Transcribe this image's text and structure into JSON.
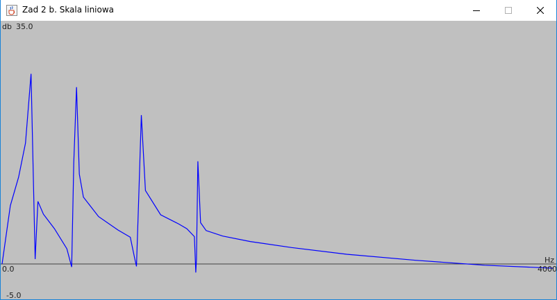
{
  "window": {
    "title": "Zad 2 b. Skala liniowa",
    "icon": "java-cup-icon",
    "controls": [
      "minimize",
      "maximize",
      "close"
    ]
  },
  "chart_data": {
    "type": "line",
    "title": "",
    "xlabel": "Hz",
    "ylabel": "db",
    "xlim": [
      0,
      4000
    ],
    "ylim": [
      -5.0,
      35.0
    ],
    "x_tick_labels": [
      "0.0",
      "4000"
    ],
    "y_tick_labels": [
      "35.0",
      "-5.0"
    ],
    "grid": false,
    "line_color": "#0000ff",
    "series": [
      {
        "x": [
          0,
          60,
          120,
          170,
          210,
          240,
          260,
          300,
          380,
          470,
          505,
          520,
          540,
          560,
          590,
          700,
          840,
          930,
          960,
          975,
          990,
          1010,
          1040,
          1150,
          1280,
          1340,
          1395,
          1405,
          1410,
          1420,
          1440,
          1480,
          1600,
          1800,
          2100,
          2500,
          3000,
          3500,
          4000
        ],
        "y": [
          0.0,
          9.6,
          14.3,
          19.9,
          31.3,
          0.8,
          10.3,
          8.2,
          5.8,
          2.5,
          -0.5,
          16.6,
          29.1,
          14.8,
          11.0,
          7.8,
          5.6,
          4.4,
          1.1,
          -0.4,
          10.0,
          24.5,
          12.1,
          8.1,
          6.6,
          5.8,
          4.5,
          -1.4,
          0.8,
          16.9,
          6.8,
          5.5,
          4.6,
          3.7,
          2.7,
          1.6,
          0.6,
          -0.2,
          -0.7
        ]
      }
    ]
  }
}
